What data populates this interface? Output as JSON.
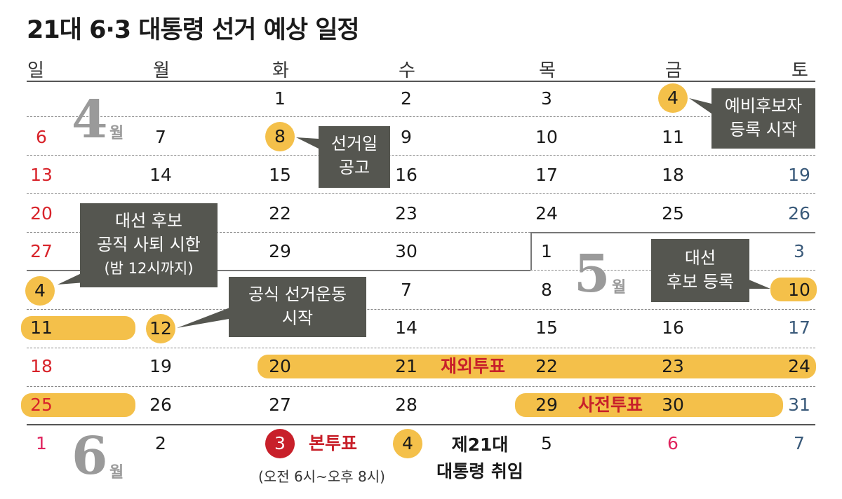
{
  "title": "21대 6·3 대통령 선거 예상 일정",
  "weekdays": [
    "일",
    "월",
    "화",
    "수",
    "목",
    "금",
    "토"
  ],
  "months": {
    "april": "4",
    "may": "5",
    "june": "6",
    "wol": "월"
  },
  "grid": {
    "r1": [
      "1",
      "2",
      "3",
      "4"
    ],
    "r2": [
      "6",
      "7",
      "8",
      "9",
      "10",
      "11"
    ],
    "r3": [
      "13",
      "14",
      "15",
      "16",
      "17",
      "18",
      "19"
    ],
    "r4": [
      "20",
      "22",
      "23",
      "24",
      "25",
      "26"
    ],
    "r5": [
      "27",
      "29",
      "30",
      "1",
      "3"
    ],
    "r6": [
      "4",
      "7",
      "8",
      "10"
    ],
    "r7": [
      "11",
      "12",
      "14",
      "15",
      "16",
      "17"
    ],
    "r8": [
      "18",
      "19",
      "20",
      "21",
      "22",
      "23",
      "24"
    ],
    "r9": [
      "25",
      "26",
      "27",
      "28",
      "29",
      "30",
      "31"
    ],
    "r10": [
      "1",
      "2",
      "3",
      "4",
      "5",
      "6",
      "7"
    ]
  },
  "callouts": {
    "preliminary": [
      "예비후보자",
      "등록 시작"
    ],
    "announcement": [
      "선거일",
      "공고"
    ],
    "resign": [
      "대선 후보",
      "공직 사퇴 시한",
      "(밤 12시까지)"
    ],
    "campaign": [
      "공식 선거운동",
      "시작"
    ],
    "registration": [
      "대선",
      "후보 등록"
    ]
  },
  "labels": {
    "overseas": "재외투표",
    "early": "사전투표",
    "main": "본투표",
    "main_hours": "(오전 6시~오후 8시)",
    "inauguration": [
      "제21대",
      "대통령 취임"
    ]
  },
  "colors": {
    "highlight": "#f4c04a",
    "callout": "#555650",
    "sunday": "#d8232a",
    "saturday": "#3a5a7a",
    "election_day": "#c8202a"
  }
}
